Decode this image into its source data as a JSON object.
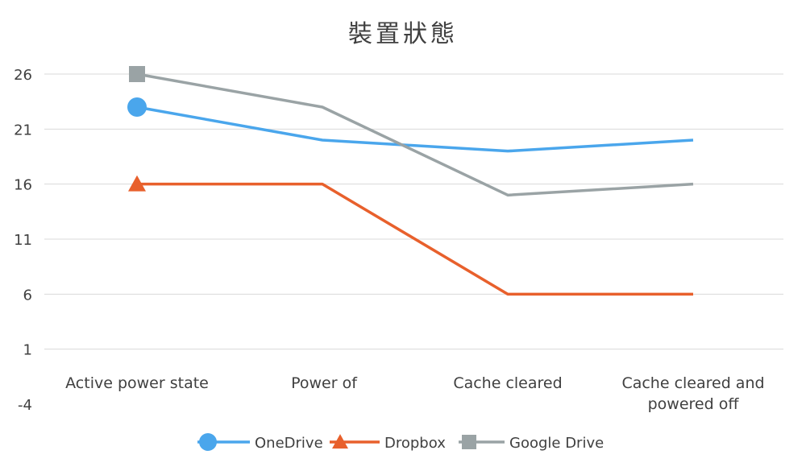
{
  "chart_data": {
    "type": "line",
    "title": "裝置狀態",
    "xlabel": "",
    "ylabel": "",
    "categories": [
      [
        "Active power state"
      ],
      [
        "Power of"
      ],
      [
        "Cache cleared"
      ],
      [
        "Cache cleared and",
        "powered off"
      ]
    ],
    "yticks": [
      -4,
      1,
      6,
      11,
      16,
      21,
      26
    ],
    "ylim": [
      -4,
      26
    ],
    "grid": true,
    "legend_position": "bottom",
    "series": [
      {
        "name": "OneDrive",
        "color": "#4aa6ec",
        "marker": "circle",
        "values": [
          23,
          20,
          19,
          20
        ]
      },
      {
        "name": "Dropbox",
        "color": "#e8602c",
        "marker": "triangle",
        "values": [
          16,
          16,
          6,
          6
        ]
      },
      {
        "name": "Google Drive",
        "color": "#9aa3a5",
        "marker": "square",
        "values": [
          26,
          23,
          15,
          16
        ]
      }
    ]
  }
}
